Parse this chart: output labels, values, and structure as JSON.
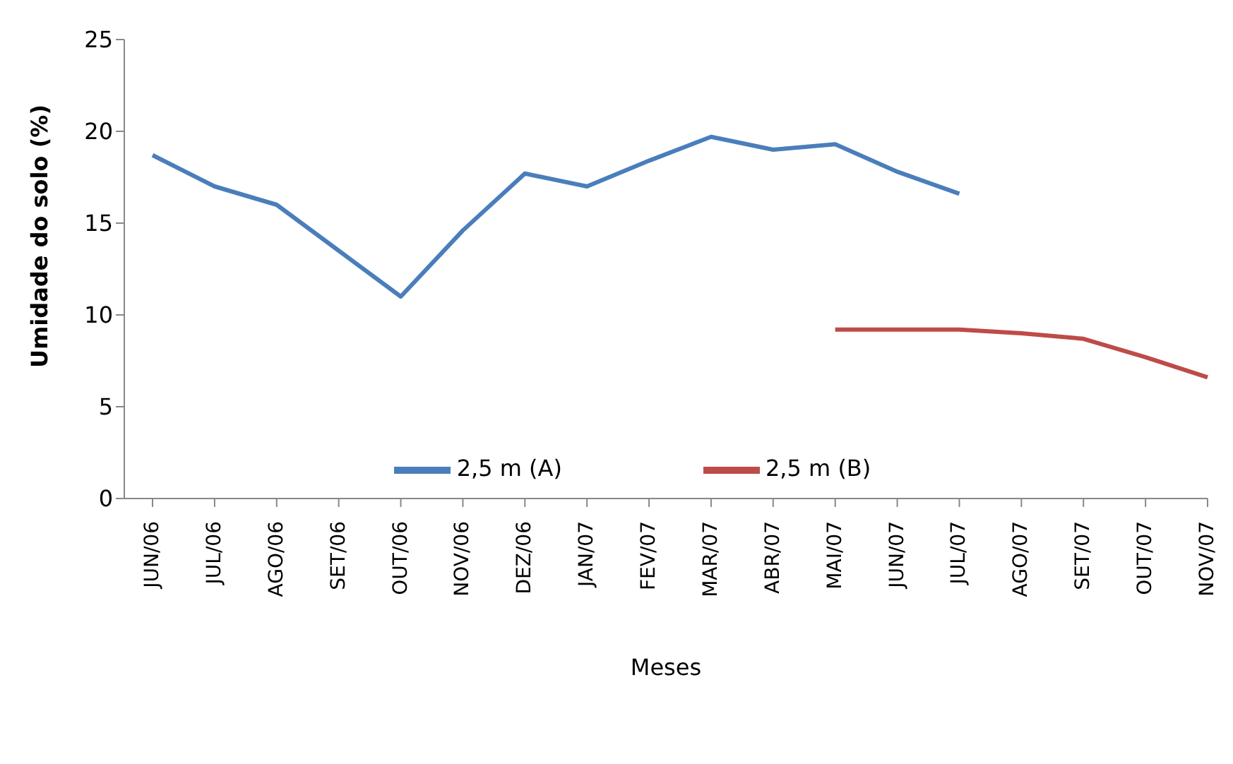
{
  "chart_data": {
    "type": "line",
    "xlabel": "Meses",
    "ylabel": "Umidade do solo (%)",
    "categories": [
      "JUN/06",
      "JUL/06",
      "AGO/06",
      "SET/06",
      "OUT/06",
      "NOV/06",
      "DEZ/06",
      "JAN/07",
      "FEV/07",
      "MAR/07",
      "ABR/07",
      "MAI/07",
      "JUN/07",
      "JUL/07",
      "AGO/07",
      "SET/07",
      "OUT/07",
      "NOV/07"
    ],
    "series": [
      {
        "name": "2,5 m (A)",
        "color": "#4a7ebb",
        "values": [
          18.7,
          17.0,
          16.0,
          13.5,
          11.0,
          14.6,
          17.7,
          17.0,
          18.4,
          19.7,
          19.0,
          19.3,
          17.8,
          16.6,
          null,
          null,
          null,
          null
        ]
      },
      {
        "name": "2,5 m (B)",
        "color": "#be4b48",
        "values": [
          null,
          null,
          null,
          null,
          null,
          null,
          null,
          null,
          null,
          null,
          null,
          9.2,
          9.2,
          9.2,
          9.0,
          8.7,
          7.7,
          6.6
        ]
      }
    ],
    "ylim": [
      0,
      25
    ],
    "yticks": [
      0,
      5,
      10,
      15,
      20,
      25
    ],
    "grid": false,
    "legend": "bottom",
    "marker": "none",
    "line_style": "solid"
  }
}
